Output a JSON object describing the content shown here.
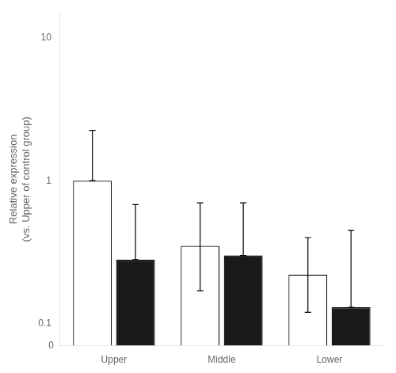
{
  "chart_data": {
    "type": "bar",
    "categories": [
      "Upper",
      "Middle",
      "Lower"
    ],
    "series": [
      {
        "color": "#ffffff",
        "values": [
          1.0,
          0.35,
          0.22
        ],
        "errors_upper": [
          1.25,
          0.35,
          0.18
        ],
        "errors_lower": [
          0.0,
          0.18,
          0.1
        ]
      },
      {
        "color": "#1a1a1a",
        "values": [
          0.28,
          0.3,
          0.13
        ],
        "errors_upper": [
          0.4,
          0.4,
          0.32
        ],
        "errors_lower": [
          0.0,
          0.0,
          0.0
        ]
      }
    ],
    "ylabel": "Relative expression\n(vs. Upper of control group)",
    "ylim": [
      0.07,
      15
    ],
    "yticks": [
      0.1,
      1,
      10
    ],
    "log": "y",
    "grid": false,
    "annotations": [
      "0"
    ]
  }
}
